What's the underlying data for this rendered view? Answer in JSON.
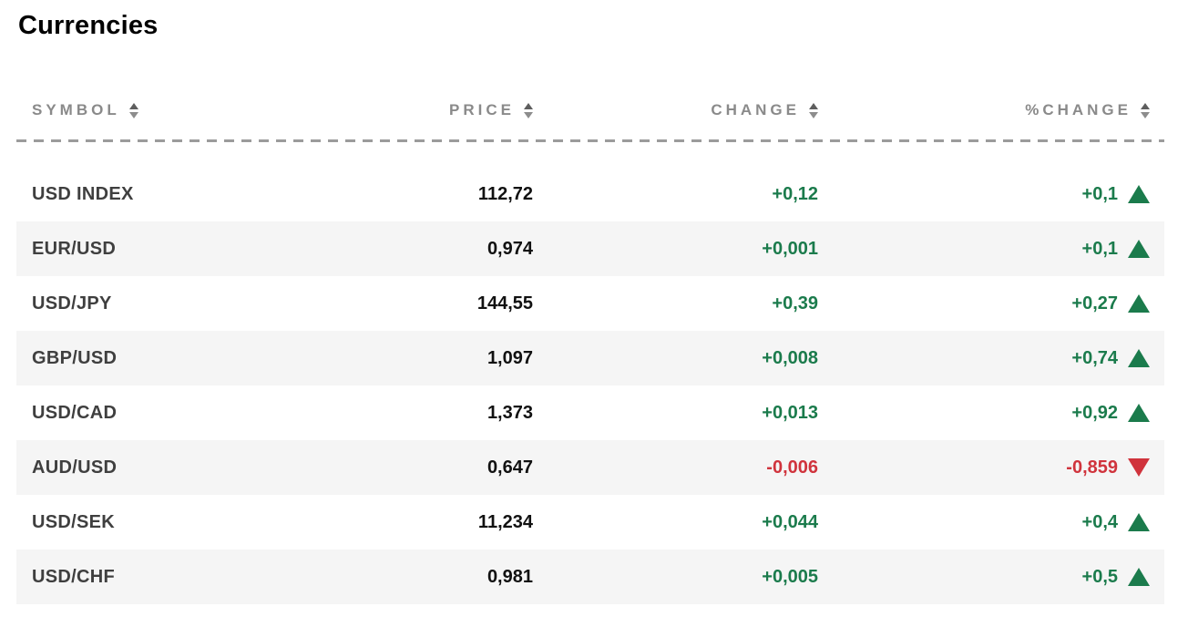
{
  "page": {
    "title": "Currencies"
  },
  "table": {
    "columns": [
      {
        "key": "symbol",
        "label": "SYMBOL",
        "sortable": true,
        "align": "left"
      },
      {
        "key": "price",
        "label": "PRICE",
        "sortable": true,
        "align": "right"
      },
      {
        "key": "change",
        "label": "CHANGE",
        "sortable": true,
        "align": "right"
      },
      {
        "key": "pct_change",
        "label": "%CHANGE",
        "sortable": true,
        "align": "right"
      }
    ],
    "rows": [
      {
        "symbol": "USD INDEX",
        "price": "112,72",
        "change": "+0,12",
        "pct_change": "+0,1",
        "direction": "up"
      },
      {
        "symbol": "EUR/USD",
        "price": "0,974",
        "change": "+0,001",
        "pct_change": "+0,1",
        "direction": "up"
      },
      {
        "symbol": "USD/JPY",
        "price": "144,55",
        "change": "+0,39",
        "pct_change": "+0,27",
        "direction": "up"
      },
      {
        "symbol": "GBP/USD",
        "price": "1,097",
        "change": "+0,008",
        "pct_change": "+0,74",
        "direction": "up"
      },
      {
        "symbol": "USD/CAD",
        "price": "1,373",
        "change": "+0,013",
        "pct_change": "+0,92",
        "direction": "up"
      },
      {
        "symbol": "AUD/USD",
        "price": "0,647",
        "change": "-0,006",
        "pct_change": "-0,859",
        "direction": "down"
      },
      {
        "symbol": "USD/SEK",
        "price": "11,234",
        "change": "+0,044",
        "pct_change": "+0,4",
        "direction": "up"
      },
      {
        "symbol": "USD/CHF",
        "price": "0,981",
        "change": "+0,005",
        "pct_change": "+0,5",
        "direction": "up"
      }
    ]
  },
  "colors": {
    "positive": "#1b7b4c",
    "negative": "#d0333c",
    "header_text": "#8a8a8a",
    "symbol_text": "#3f3f3f",
    "price_text": "#111111",
    "alt_row_bg": "#f5f5f5"
  }
}
